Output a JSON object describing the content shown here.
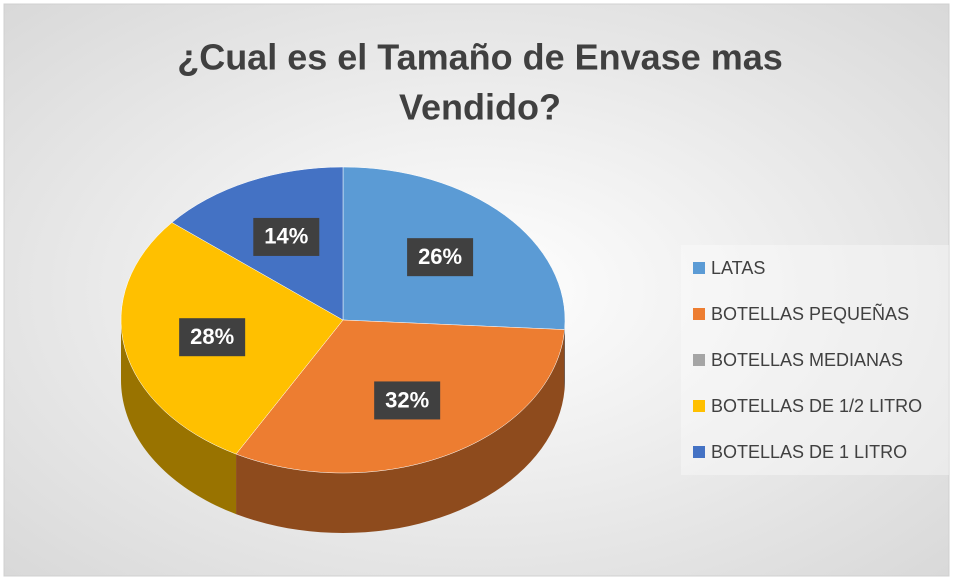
{
  "chart_data": {
    "type": "pie",
    "title": [
      "¿Cual es el Tamaño de Envase mas",
      "Vendido?"
    ],
    "categories": [
      "LATAS",
      "BOTELLAS PEQUEÑAS",
      "BOTELLAS MEDIANAS",
      "BOTELLAS DE 1/2 LITRO",
      "BOTELLAS DE 1 LITRO"
    ],
    "values": [
      26,
      32,
      0,
      28,
      14
    ],
    "value_labels": [
      "26%",
      "32%",
      null,
      "28%",
      "14%"
    ],
    "colors": [
      "#5b9bd5",
      "#ed7d31",
      "#a5a5a5",
      "#ffc000",
      "#4472c4"
    ],
    "legend": "right"
  }
}
